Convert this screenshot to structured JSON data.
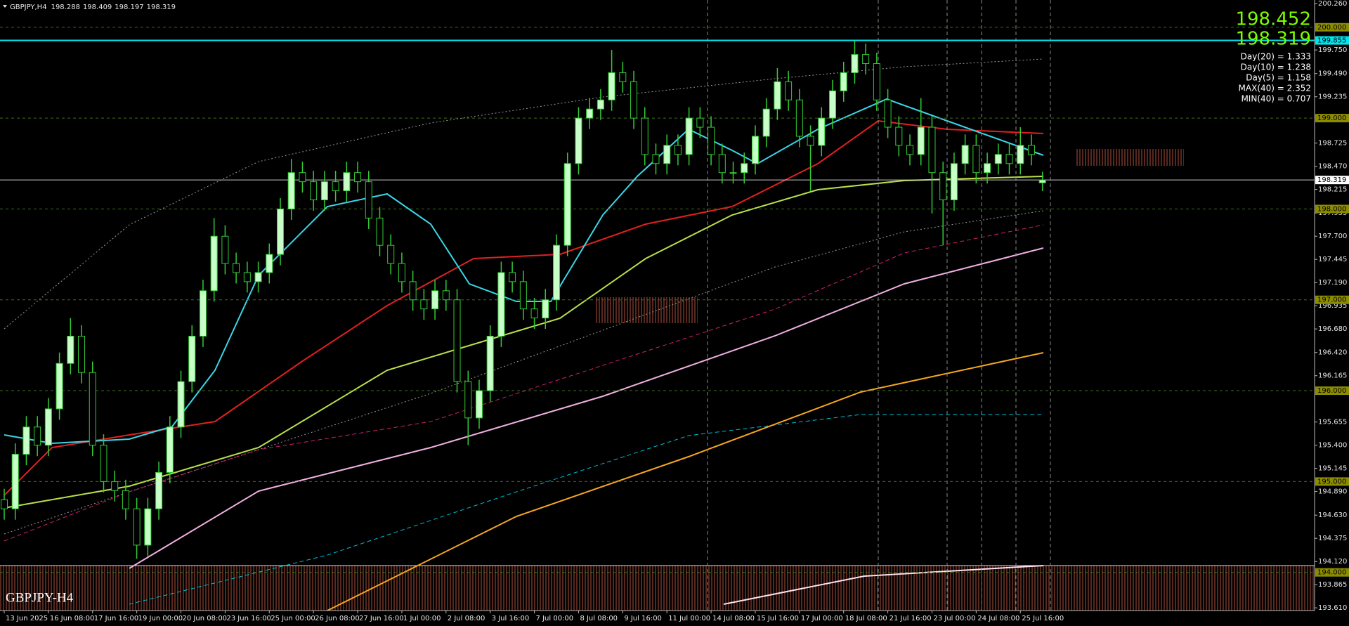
{
  "chart_data": {
    "type": "candlestick",
    "title": "GBPJPY,H4",
    "ask": 198.452,
    "stats": [
      "Day(20) = 1.333",
      "Day(10) = 1.238",
      "Day(5) = 1.158",
      "MAX(40) = 2.352",
      "MIN(40) = 0.707"
    ],
    "watermark": "GBPJPY-H4",
    "categories": [
      "13 Jun 2025",
      null,
      null,
      null,
      "16 Jun 08:00",
      null,
      null,
      null,
      "17 Jun 16:00",
      null,
      null,
      null,
      "19 Jun 00:00",
      null,
      null,
      null,
      "20 Jun 08:00",
      null,
      null,
      null,
      "23 Jun 16:00",
      null,
      null,
      null,
      "25 Jun 00:00",
      null,
      null,
      null,
      "26 Jun 08:00",
      null,
      null,
      null,
      "27 Jun 16:00",
      null,
      null,
      null,
      "1 Jul 00:00",
      null,
      null,
      null,
      "2 Jul 08:00",
      null,
      null,
      null,
      "3 Jul 16:00",
      null,
      null,
      null,
      "7 Jul 00:00",
      null,
      null,
      null,
      "8 Jul 08:00",
      null,
      null,
      null,
      "9 Jul 16:00",
      null,
      null,
      null,
      "11 Jul 00:00",
      null,
      null,
      null,
      "14 Jul 08:00",
      null,
      null,
      null,
      "15 Jul 16:00",
      null,
      null,
      null,
      "17 Jul 00:00",
      null,
      null,
      null,
      "18 Jul 08:00",
      null,
      null,
      null,
      "21 Jul 16:00",
      null,
      null,
      null,
      "23 Jul 00:00",
      null,
      null,
      null,
      "24 Jul 08:00",
      null,
      null,
      null,
      "25 Jul 16:00",
      null,
      null
    ],
    "ohlc": [
      [
        194.8,
        194.92,
        194.58,
        194.7
      ],
      [
        194.7,
        195.42,
        194.58,
        195.3
      ],
      [
        195.3,
        195.72,
        195.18,
        195.6
      ],
      [
        195.6,
        195.72,
        195.28,
        195.4
      ],
      [
        195.4,
        195.92,
        195.28,
        195.8
      ],
      [
        195.8,
        196.42,
        195.68,
        196.3
      ],
      [
        196.3,
        196.8,
        196.18,
        196.6
      ],
      [
        196.6,
        196.72,
        196.08,
        196.2
      ],
      [
        196.2,
        196.32,
        195.28,
        195.4
      ],
      [
        195.4,
        195.52,
        194.88,
        195.0
      ],
      [
        195.0,
        195.12,
        194.78,
        194.9
      ],
      [
        194.9,
        195.02,
        194.58,
        194.7
      ],
      [
        194.7,
        194.82,
        194.15,
        194.3
      ],
      [
        194.3,
        194.82,
        194.18,
        194.7
      ],
      [
        194.7,
        195.22,
        194.58,
        195.1
      ],
      [
        195.1,
        195.72,
        194.98,
        195.6
      ],
      [
        195.6,
        196.22,
        195.48,
        196.1
      ],
      [
        196.1,
        196.72,
        195.98,
        196.6
      ],
      [
        196.6,
        197.22,
        196.48,
        197.1
      ],
      [
        197.1,
        197.9,
        196.98,
        197.7
      ],
      [
        197.7,
        197.82,
        197.28,
        197.4
      ],
      [
        197.4,
        197.52,
        197.18,
        197.3
      ],
      [
        197.3,
        197.42,
        197.08,
        197.2
      ],
      [
        197.2,
        197.42,
        197.08,
        197.3
      ],
      [
        197.3,
        197.62,
        197.18,
        197.5
      ],
      [
        197.5,
        198.12,
        197.38,
        198.0
      ],
      [
        198.0,
        198.55,
        197.88,
        198.4
      ],
      [
        198.4,
        198.52,
        198.18,
        198.3
      ],
      [
        198.3,
        198.42,
        197.98,
        198.1
      ],
      [
        198.1,
        198.42,
        197.98,
        198.3
      ],
      [
        198.3,
        198.42,
        198.08,
        198.2
      ],
      [
        198.2,
        198.52,
        198.08,
        198.4
      ],
      [
        198.4,
        198.52,
        198.18,
        198.3
      ],
      [
        198.3,
        198.42,
        197.78,
        197.9
      ],
      [
        197.9,
        198.02,
        197.48,
        197.6
      ],
      [
        197.6,
        197.72,
        197.28,
        197.4
      ],
      [
        197.4,
        197.52,
        197.08,
        197.2
      ],
      [
        197.2,
        197.32,
        196.88,
        197.0
      ],
      [
        197.0,
        197.12,
        196.78,
        196.9
      ],
      [
        196.9,
        197.22,
        196.78,
        197.1
      ],
      [
        197.1,
        197.22,
        196.88,
        197.0
      ],
      [
        197.0,
        197.12,
        195.98,
        196.1
      ],
      [
        196.1,
        196.22,
        195.4,
        195.7
      ],
      [
        195.7,
        196.12,
        195.58,
        196.0
      ],
      [
        196.0,
        196.72,
        195.88,
        196.6
      ],
      [
        196.6,
        197.42,
        196.48,
        197.3
      ],
      [
        197.3,
        197.42,
        197.08,
        197.2
      ],
      [
        197.2,
        197.32,
        196.78,
        196.9
      ],
      [
        196.9,
        197.02,
        196.68,
        196.8
      ],
      [
        196.8,
        197.12,
        196.68,
        197.0
      ],
      [
        197.0,
        197.72,
        196.88,
        197.6
      ],
      [
        197.6,
        198.62,
        197.48,
        198.5
      ],
      [
        198.5,
        199.12,
        198.38,
        199.0
      ],
      [
        199.0,
        199.22,
        198.88,
        199.1
      ],
      [
        199.1,
        199.32,
        198.98,
        199.2
      ],
      [
        199.2,
        199.75,
        199.08,
        199.5
      ],
      [
        199.5,
        199.62,
        199.28,
        199.4
      ],
      [
        199.4,
        199.52,
        198.88,
        199.0
      ],
      [
        199.0,
        199.12,
        198.48,
        198.6
      ],
      [
        198.6,
        198.72,
        198.38,
        198.5
      ],
      [
        198.5,
        198.82,
        198.38,
        198.7
      ],
      [
        198.7,
        198.82,
        198.48,
        198.6
      ],
      [
        198.6,
        199.12,
        198.48,
        199.0
      ],
      [
        199.0,
        199.12,
        198.78,
        198.9
      ],
      [
        198.9,
        199.02,
        198.48,
        198.6
      ],
      [
        198.6,
        198.72,
        198.28,
        198.4
      ],
      [
        198.4,
        198.52,
        198.28,
        198.4
      ],
      [
        198.4,
        198.62,
        198.28,
        198.5
      ],
      [
        198.5,
        198.92,
        198.38,
        198.8
      ],
      [
        198.8,
        199.22,
        198.68,
        199.1
      ],
      [
        199.1,
        199.55,
        198.98,
        199.4
      ],
      [
        199.4,
        199.52,
        199.08,
        199.2
      ],
      [
        199.2,
        199.32,
        198.68,
        198.8
      ],
      [
        198.8,
        198.92,
        198.2,
        198.7
      ],
      [
        198.7,
        199.12,
        198.58,
        199.0
      ],
      [
        199.0,
        199.42,
        198.88,
        199.3
      ],
      [
        199.3,
        199.62,
        199.18,
        199.5
      ],
      [
        199.5,
        199.85,
        199.38,
        199.7
      ],
      [
        199.7,
        199.82,
        199.48,
        199.6
      ],
      [
        199.6,
        199.72,
        199.08,
        199.2
      ],
      [
        199.2,
        199.32,
        198.78,
        198.9
      ],
      [
        198.9,
        199.02,
        198.58,
        198.7
      ],
      [
        198.7,
        198.82,
        198.48,
        198.6
      ],
      [
        198.6,
        199.22,
        198.48,
        198.9
      ],
      [
        198.9,
        199.02,
        197.95,
        198.4
      ],
      [
        198.4,
        198.52,
        197.6,
        198.1
      ],
      [
        198.1,
        198.62,
        197.98,
        198.5
      ],
      [
        198.5,
        198.82,
        198.38,
        198.7
      ],
      [
        198.7,
        198.82,
        198.28,
        198.4
      ],
      [
        198.4,
        198.62,
        198.28,
        198.5
      ],
      [
        198.5,
        198.72,
        198.38,
        198.6
      ],
      [
        198.6,
        198.72,
        198.38,
        198.5
      ],
      [
        198.5,
        198.9,
        198.38,
        198.7
      ],
      [
        198.7,
        198.82,
        198.48,
        198.6
      ],
      [
        198.288,
        198.409,
        198.197,
        198.319
      ]
    ],
    "up_color": "#c8ffc8",
    "down_color": "#000000",
    "wick_color": "#33cc33",
    "ylim": [
      193.58,
      200.3
    ],
    "yticks": [
      {
        "value": 200.26,
        "label": "200.260"
      },
      {
        "value": 199.75,
        "label": "199.750"
      },
      {
        "value": 199.49,
        "label": "199.490"
      },
      {
        "value": 199.235,
        "label": "199.235"
      },
      {
        "value": 198.725,
        "label": "198.725"
      },
      {
        "value": 198.47,
        "label": "198.470"
      },
      {
        "value": 198.215,
        "label": "198.215"
      },
      {
        "value": 197.955,
        "label": "197.955"
      },
      {
        "value": 197.7,
        "label": "197.700"
      },
      {
        "value": 197.445,
        "label": "197.445"
      },
      {
        "value": 197.19,
        "label": "197.190"
      },
      {
        "value": 196.935,
        "label": "196.935"
      },
      {
        "value": 196.68,
        "label": "196.680"
      },
      {
        "value": 196.42,
        "label": "196.420"
      },
      {
        "value": 196.165,
        "label": "196.165"
      },
      {
        "value": 195.655,
        "label": "195.655"
      },
      {
        "value": 195.4,
        "label": "195.400"
      },
      {
        "value": 195.145,
        "label": "195.145"
      },
      {
        "value": 194.89,
        "label": "194.890"
      },
      {
        "value": 194.63,
        "label": "194.630"
      },
      {
        "value": 194.375,
        "label": "194.375"
      },
      {
        "value": 194.12,
        "label": "194.120"
      },
      {
        "value": 193.865,
        "label": "193.865"
      },
      {
        "value": 193.61,
        "label": "193.610"
      }
    ],
    "levels": [
      {
        "value": 200,
        "label": "200.000"
      },
      {
        "value": 199,
        "label": "199.000"
      },
      {
        "value": 198,
        "label": "198.000"
      },
      {
        "value": 197,
        "label": "197.000"
      },
      {
        "value": 196,
        "label": "196.000"
      },
      {
        "value": 195,
        "label": "195.000"
      },
      {
        "value": 194,
        "label": "194.000"
      }
    ],
    "level_color": "#8c8c00",
    "resistance": {
      "value": 199.855,
      "label": "199.855"
    },
    "resistance_color": "#00e5ee",
    "grid": false
  }
}
